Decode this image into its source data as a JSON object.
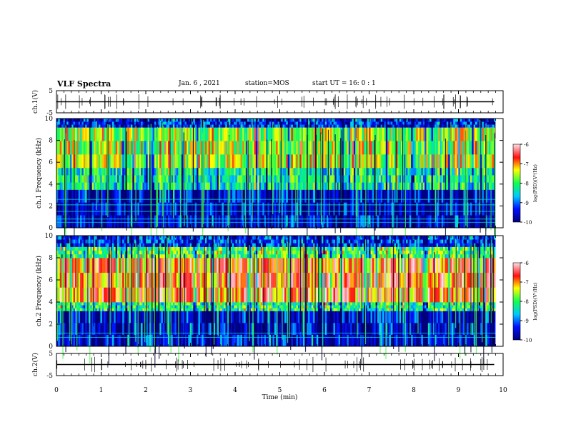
{
  "header": {
    "title": "VLF Spectra",
    "date": "Jan. 6 , 2021",
    "station": "station=MOS",
    "start": "start UT = 16: 0 : 1"
  },
  "chart_data": [
    {
      "type": "line",
      "panel": "ch1-waveform",
      "ylabel": "ch.1(V)",
      "ylim": [
        -5,
        5
      ],
      "yticks": [
        "5",
        "-5"
      ],
      "xlim": [
        0,
        10
      ],
      "series": [
        {
          "values": [
            [
              0,
              0
            ],
            [
              9.8,
              0
            ]
          ]
        }
      ]
    },
    {
      "type": "heatmap",
      "panel": "ch1-spectrogram",
      "ylabel": "ch.1 Frequency (kHz)",
      "ylim": [
        0,
        10
      ],
      "yticks": [
        "0",
        "2",
        "4",
        "6",
        "8",
        "10"
      ],
      "xlim": [
        0,
        10
      ],
      "colorbar": {
        "label": "log(PSD)(V²/Hz)",
        "range": [
          -10,
          -6
        ],
        "ticks": [
          "-6",
          "-7",
          "-8",
          "-9",
          "-10"
        ]
      },
      "bands": [
        {
          "f_low": 0,
          "f_high": 3.5,
          "level": -9.6
        },
        {
          "f_low": 3.5,
          "f_high": 5.5,
          "level": -8.3
        },
        {
          "f_low": 5.5,
          "f_high": 9.2,
          "level": -7.6
        },
        {
          "f_low": 9.2,
          "f_high": 10,
          "level": -9.4
        }
      ],
      "narrowband_lines_khz": [
        0.5,
        0.8,
        1.5,
        2.1,
        2.6
      ]
    },
    {
      "type": "heatmap",
      "panel": "ch2-spectrogram",
      "ylabel": "ch.2 Frequency (kHz)",
      "ylim": [
        0,
        10
      ],
      "yticks": [
        "0",
        "2",
        "4",
        "6",
        "8",
        "10"
      ],
      "xlim": [
        0,
        10
      ],
      "colorbar": {
        "label": "log(PSD)(V²/Hz)",
        "range": [
          -10,
          -6
        ],
        "ticks": [
          "-6",
          "-7",
          "-8",
          "-9",
          "-10"
        ]
      },
      "bands": [
        {
          "f_low": 0,
          "f_high": 3.2,
          "level": -9.5
        },
        {
          "f_low": 3.2,
          "f_high": 4.0,
          "level": -8.2
        },
        {
          "f_low": 4.0,
          "f_high": 8.0,
          "level": -6.8
        },
        {
          "f_low": 8.0,
          "f_high": 9.0,
          "level": -8.0
        },
        {
          "f_low": 9.0,
          "f_high": 10,
          "level": -9.3
        }
      ],
      "narrowband_lines_khz": [
        0.8,
        1.2
      ]
    },
    {
      "type": "line",
      "panel": "ch2-waveform",
      "ylabel": "ch.2(V)",
      "ylim": [
        -5,
        5
      ],
      "yticks": [
        "5",
        "-5"
      ],
      "xlim": [
        0,
        10
      ],
      "xlabel": "Time (min)",
      "xticks": [
        "0",
        "1",
        "2",
        "3",
        "4",
        "5",
        "6",
        "7",
        "8",
        "9",
        "10"
      ],
      "series": [
        {
          "values": [
            [
              0,
              0
            ],
            [
              9.8,
              0
            ]
          ]
        }
      ]
    }
  ]
}
